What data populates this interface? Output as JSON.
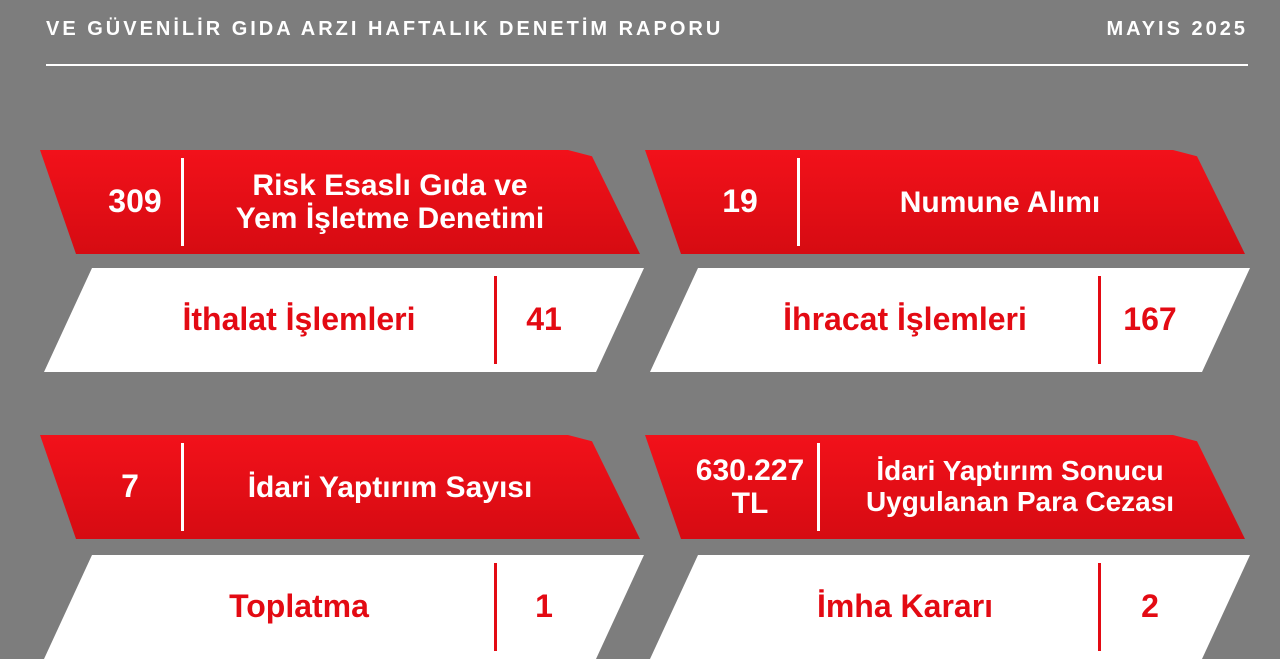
{
  "header": {
    "title": "VE GÜVENİLİR GIDA ARZI HAFTALIK DENETİM RAPORU",
    "date": "MAYIS 2025"
  },
  "colors": {
    "background": "#7d7d7d",
    "red": "#e30a13",
    "white": "#ffffff"
  },
  "cards": [
    {
      "value": "309",
      "label": "Risk Esaslı Gıda ve Yem İşletme Denetimi"
    },
    {
      "value": "41",
      "label": "İthalat İşlemleri"
    },
    {
      "value": "19",
      "label": "Numune Alımı"
    },
    {
      "value": "167",
      "label": "İhracat İşlemleri"
    },
    {
      "value": "7",
      "label": "İdari Yaptırım Sayısı"
    },
    {
      "value": "1",
      "label": "Toplatma"
    },
    {
      "value": "630.227 TL",
      "label": "İdari Yaptırım Sonucu Uygulanan Para Cezası"
    },
    {
      "value": "2",
      "label": "İmha Kararı"
    }
  ]
}
